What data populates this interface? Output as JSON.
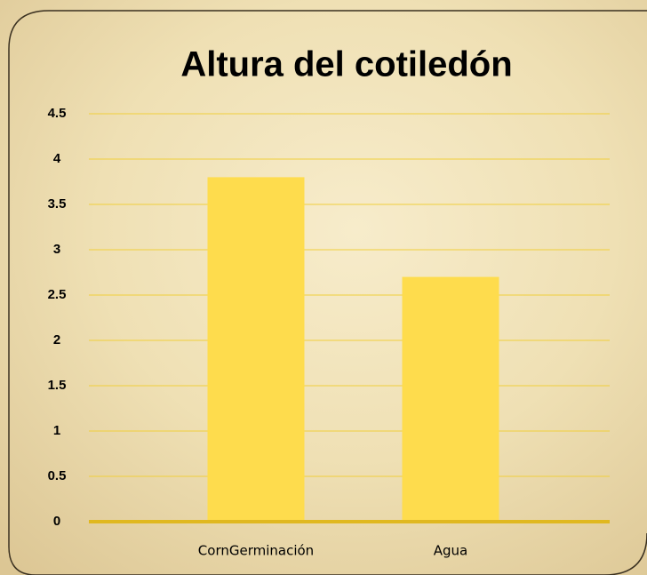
{
  "chart_data": {
    "type": "bar",
    "title": "Altura del cotiledón",
    "categories": [
      "CornGerminación",
      "Agua"
    ],
    "values": [
      3.8,
      2.7
    ],
    "color": "#fedc4d",
    "ylim": [
      0,
      4.5
    ],
    "yticks": [
      0,
      0.5,
      1,
      1.5,
      2,
      2.5,
      3,
      3.5,
      4,
      4.5
    ],
    "grid": true
  }
}
